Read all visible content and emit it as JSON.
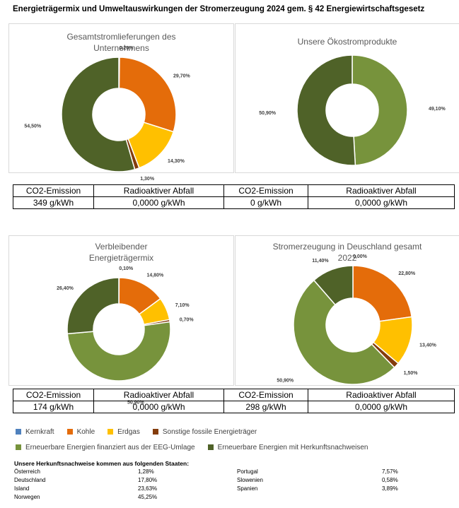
{
  "page_title": "Energieträgermix und Umweltauswirkungen der Stromerzeugung 2024 gem. § 42 Energiewirtschaftsgesetz",
  "colors": {
    "kernkraft": "#4f81bd",
    "kohle": "#e46c0a",
    "erdgas": "#ffc000",
    "sonstige": "#843c0c",
    "eeg": "#77933c",
    "herkunft": "#4f6228"
  },
  "chart_data": [
    {
      "type": "pie",
      "title": "Gesamtstromlieferungen des Unternehmens",
      "title_lines": [
        "Gesamtstromlieferungen des",
        "Unternehmens"
      ],
      "slices": [
        {
          "key": "sonstige",
          "value": 0.2,
          "label": "0,20%"
        },
        {
          "key": "kohle",
          "value": 29.7,
          "label": "29,70%"
        },
        {
          "key": "erdgas",
          "value": 14.3,
          "label": "14,30%"
        },
        {
          "key": "sonstige",
          "value": 1.3,
          "label": "1,30%"
        },
        {
          "key": "herkunft",
          "value": 54.5,
          "label": "54,50%"
        }
      ]
    },
    {
      "type": "pie",
      "title": "Unsere Ökostromprodukte",
      "title_lines": [
        "Unsere Ökostromprodukte"
      ],
      "slices": [
        {
          "key": "eeg",
          "value": 49.1,
          "label": "49,10%"
        },
        {
          "key": "herkunft",
          "value": 50.9,
          "label": "50,90%"
        }
      ]
    },
    {
      "type": "pie",
      "title": "Verbleibender Energieträgermix",
      "title_lines": [
        "Verbleibender",
        "Energieträgermix"
      ],
      "slices": [
        {
          "key": "sonstige",
          "value": 0.1,
          "label": "0,10%"
        },
        {
          "key": "kohle",
          "value": 14.8,
          "label": "14,80%"
        },
        {
          "key": "erdgas",
          "value": 7.1,
          "label": "7,10%"
        },
        {
          "key": "sonstige",
          "value": 0.7,
          "label": "0,70%"
        },
        {
          "key": "eeg",
          "value": 50.9,
          "label": "50,90%"
        },
        {
          "key": "herkunft",
          "value": 26.4,
          "label": "26,40%"
        }
      ]
    },
    {
      "type": "pie",
      "title": "Stromerzeugung in Deuschland gesamt 2022",
      "title_lines": [
        "Stromerzeugung in Deuschland gesamt",
        "2022"
      ],
      "slices": [
        {
          "key": "kernkraft",
          "value": 0.0,
          "label": "0,00%"
        },
        {
          "key": "kohle",
          "value": 22.8,
          "label": "22,80%"
        },
        {
          "key": "erdgas",
          "value": 13.4,
          "label": "13,40%"
        },
        {
          "key": "sonstige",
          "value": 1.5,
          "label": "1,50%"
        },
        {
          "key": "eeg",
          "value": 50.9,
          "label": "50,90%"
        },
        {
          "key": "herkunft",
          "value": 11.4,
          "label": "11,40%"
        }
      ]
    }
  ],
  "tables": [
    {
      "h1": "CO2-Emission",
      "h2": "Radioaktiver Abfall",
      "v1": "349 g/kWh",
      "v2": "0,0000 g/kWh",
      "h3": "CO2-Emission",
      "h4": "Radioaktiver Abfall",
      "v3": "0 g/kWh",
      "v4": "0,0000 g/kWh"
    },
    {
      "h1": "CO2-Emission",
      "h2": "Radioaktiver Abfall",
      "v1": "174 g/kWh",
      "v2": "0,0000 g/kWh",
      "h3": "CO2-Emission",
      "h4": "Radioaktiver Abfall",
      "v3": "298 g/kWh",
      "v4": "0,0000 g/kWh"
    }
  ],
  "legend": {
    "kernkraft": "Kernkraft",
    "kohle": "Kohle",
    "erdgas": "Erdgas",
    "sonstige": "Sonstige fossile Energieträger",
    "eeg": "Erneuerbare Energien finanziert aus der EEG-Umlage",
    "herkunft": "Erneuerbare Energien mit Herkunftsnachweisen"
  },
  "origin": {
    "title": "Unsere Herkunftsnachweise kommen aus folgenden Staaten:",
    "rows": [
      {
        "c1": "Österreich",
        "p1": "1,28%",
        "c2": "Portugal",
        "p2": "7,57%"
      },
      {
        "c1": "Deutschland",
        "p1": "17,80%",
        "c2": "Slowenien",
        "p2": "0,58%"
      },
      {
        "c1": "Island",
        "p1": "23,63%",
        "c2": "Spanien",
        "p2": "3,89%"
      },
      {
        "c1": "Norwegen",
        "p1": "45,25%",
        "c2": "",
        "p2": ""
      }
    ]
  }
}
